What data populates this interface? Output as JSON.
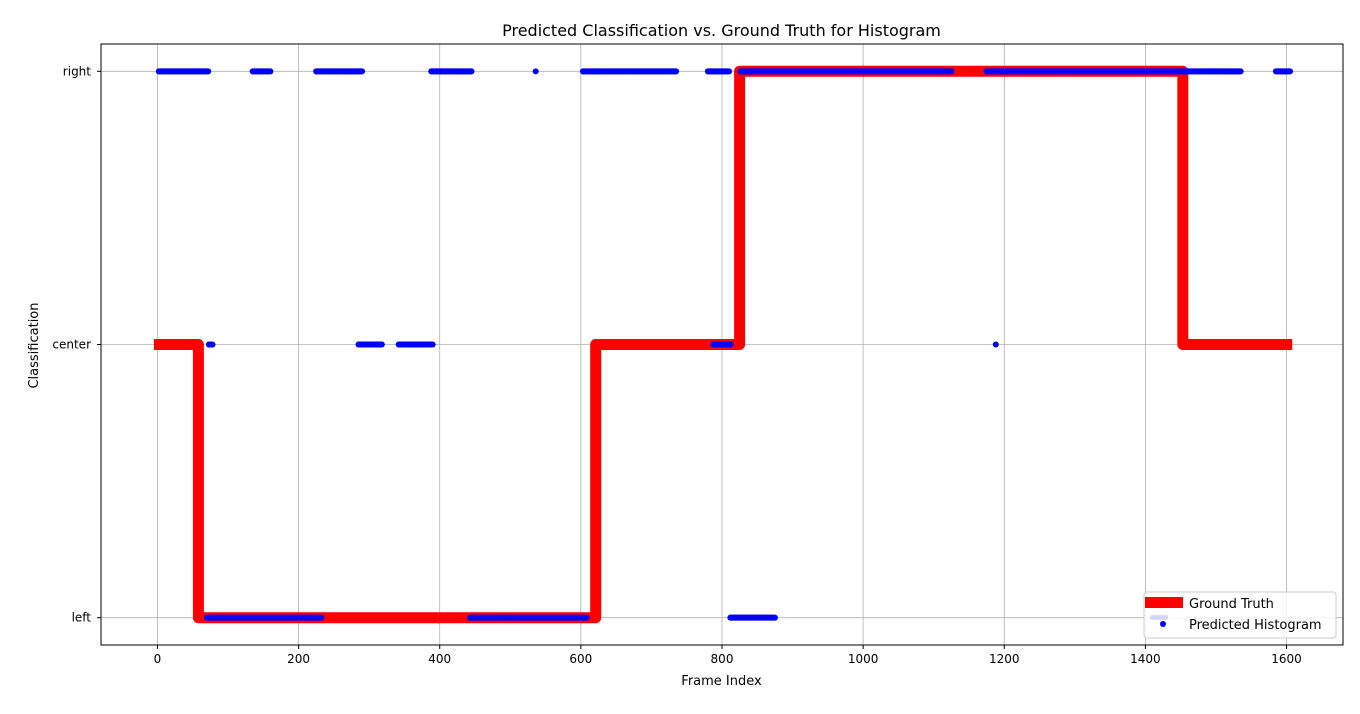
{
  "chart_data": {
    "type": "line",
    "title": "Predicted Classification vs. Ground Truth for Histogram",
    "xlabel": "Frame Index",
    "ylabel": "Classification",
    "xlim": [
      -80,
      1680
    ],
    "ylim": [
      -0.1,
      2.1
    ],
    "x_ticks": [
      0,
      200,
      400,
      600,
      800,
      1000,
      1200,
      1400,
      1600
    ],
    "y_categories": [
      "left",
      "center",
      "right"
    ],
    "grid": true,
    "legend_position": "lower-right",
    "series": [
      {
        "name": "Ground Truth",
        "style": "step-line",
        "color": "#ff0000",
        "points": [
          [
            -5,
            1
          ],
          [
            58,
            1
          ],
          [
            58,
            0
          ],
          [
            621,
            0
          ],
          [
            621,
            1
          ],
          [
            825,
            1
          ],
          [
            825,
            2
          ],
          [
            1453,
            2
          ],
          [
            1453,
            1
          ],
          [
            1608,
            1
          ]
        ]
      },
      {
        "name": "Predicted Histogram",
        "style": "markers",
        "color": "#0000ff",
        "runs": [
          {
            "class": "right",
            "start": 2,
            "end": 72
          },
          {
            "class": "right",
            "start": 135,
            "end": 160
          },
          {
            "class": "right",
            "start": 225,
            "end": 290
          },
          {
            "class": "right",
            "start": 388,
            "end": 445
          },
          {
            "class": "right",
            "start": 536,
            "end": 536
          },
          {
            "class": "right",
            "start": 603,
            "end": 735
          },
          {
            "class": "right",
            "start": 780,
            "end": 810
          },
          {
            "class": "right",
            "start": 826,
            "end": 1125
          },
          {
            "class": "right",
            "start": 1175,
            "end": 1535
          },
          {
            "class": "right",
            "start": 1585,
            "end": 1605
          },
          {
            "class": "center",
            "start": 73,
            "end": 78
          },
          {
            "class": "center",
            "start": 285,
            "end": 318
          },
          {
            "class": "center",
            "start": 342,
            "end": 390
          },
          {
            "class": "center",
            "start": 788,
            "end": 812
          },
          {
            "class": "center",
            "start": 1188,
            "end": 1188
          },
          {
            "class": "left",
            "start": 70,
            "end": 232
          },
          {
            "class": "left",
            "start": 443,
            "end": 608
          },
          {
            "class": "left",
            "start": 812,
            "end": 875
          }
        ]
      }
    ]
  }
}
